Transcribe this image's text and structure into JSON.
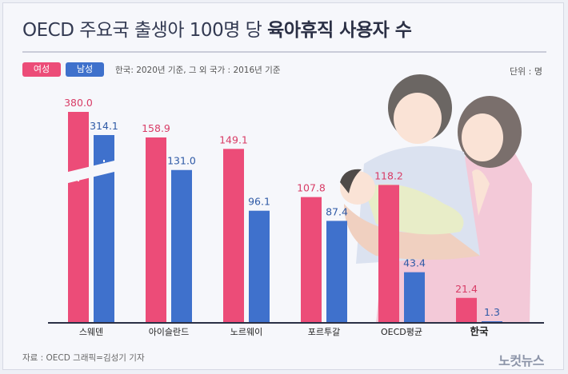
{
  "header": {
    "title_prefix": "OECD 주요국 출생아 100명 당",
    "title_bold": "육아휴직 사용자 수"
  },
  "legend": {
    "female": "여성",
    "male": "남성",
    "note": "한국: 2020년 기준, 그 외 국가 : 2016년 기준",
    "unit": "단위 : 명"
  },
  "footer": {
    "source": "자료 : OECD    그래픽=김성기 기자",
    "logo": "노컷뉴스"
  },
  "colors": {
    "female": "#ec4c78",
    "male": "#3f71cc",
    "axis": "#2b3045"
  },
  "chart_data": {
    "type": "bar",
    "title": "OECD 주요국 출생아 100명 당 육아휴직 사용자 수",
    "categories": [
      "스웨덴",
      "아이슬란드",
      "노르웨이",
      "포르투갈",
      "OECD평균",
      "한국"
    ],
    "series": [
      {
        "name": "여성",
        "values": [
          380.0,
          158.9,
          149.1,
          107.8,
          118.2,
          21.4
        ]
      },
      {
        "name": "남성",
        "values": [
          314.1,
          131.0,
          96.1,
          87.4,
          43.4,
          1.3
        ]
      }
    ],
    "value_labels": [
      [
        "380.0",
        "158.9",
        "149.1",
        "107.8",
        "118.2",
        "21.4"
      ],
      [
        "314.1",
        "131.0",
        "96.1",
        "87.4",
        "43.4",
        "1.3"
      ]
    ],
    "axis_break": "스웨덴 bars are truncated with a break mark",
    "highlight_category": "한국",
    "ylabel": "",
    "xlabel": ""
  }
}
